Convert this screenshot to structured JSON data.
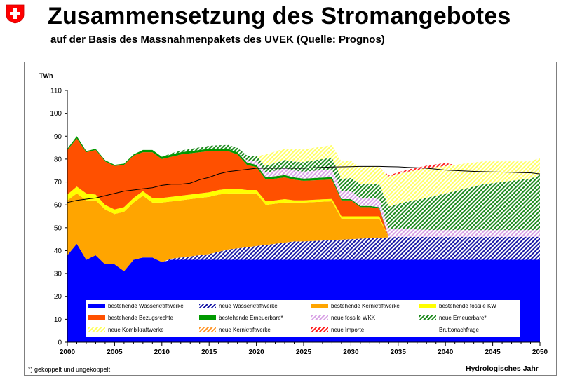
{
  "header": {
    "title": "Zusammensetzung des Stromangebotes",
    "subtitle": "auf der Basis des Massnahmenpakets des UVEK (Quelle: Prognos)"
  },
  "footnote": "*) gekoppelt und ungekoppelt",
  "colors": {
    "wasser": "#0000ff",
    "neue_wasser": "#1a1aa6",
    "kern": "#ffa500",
    "fossil": "#ffff00",
    "bezug": "#ff5000",
    "erneuerbar": "#009900",
    "neue_fossil": "#d9a3e6",
    "neue_erneuerbar": "#1d8a1d",
    "kombi": "#ffff66",
    "neue_kern": "#ff9a33",
    "neue_importe": "#ff2020",
    "nachfrage": "#000000",
    "flag": "#ff0000"
  },
  "chart_data": {
    "type": "area",
    "title": "",
    "ylabel": "TWh",
    "xlabel": "Hydrologisches Jahr",
    "ylim": [
      0,
      110
    ],
    "yticks": [
      0,
      10,
      20,
      30,
      40,
      50,
      60,
      70,
      80,
      90,
      100,
      110
    ],
    "xlim": [
      2000,
      2050
    ],
    "xticks": [
      2000,
      2005,
      2010,
      2015,
      2020,
      2025,
      2030,
      2035,
      2040,
      2045,
      2050
    ],
    "x": [
      2000,
      2001,
      2002,
      2003,
      2004,
      2005,
      2006,
      2007,
      2008,
      2009,
      2010,
      2011,
      2012,
      2013,
      2014,
      2015,
      2016,
      2017,
      2018,
      2019,
      2020,
      2021,
      2022,
      2023,
      2024,
      2025,
      2026,
      2027,
      2028,
      2029,
      2030,
      2031,
      2032,
      2033,
      2034,
      2035,
      2036,
      2037,
      2038,
      2039,
      2040,
      2041,
      2042,
      2043,
      2044,
      2045,
      2046,
      2047,
      2048,
      2049,
      2050
    ],
    "series": [
      {
        "name": "bestehende Wasserkraftwerke",
        "pattern": "solid",
        "color": "wasser",
        "values": [
          38,
          43,
          36,
          38,
          34,
          34,
          31,
          36,
          37,
          37,
          35,
          36,
          36,
          36,
          36,
          36,
          36,
          36,
          36,
          36,
          36,
          36,
          36,
          36,
          36,
          36,
          36,
          36,
          36,
          36,
          36,
          36,
          36,
          36,
          36,
          36,
          36,
          36,
          36,
          36,
          36,
          36,
          36,
          36,
          36,
          36,
          36,
          36,
          36,
          36,
          36
        ]
      },
      {
        "name": "neue Wasserkraftwerke",
        "pattern": "hatch",
        "color": "neue_wasser",
        "values": [
          0,
          0,
          0,
          0,
          0,
          0,
          0,
          0,
          0,
          0,
          0,
          0.5,
          1,
          1.5,
          2,
          2.5,
          3.5,
          4.5,
          5,
          5.5,
          6,
          6.5,
          7,
          7.5,
          8,
          8,
          8.2,
          8.4,
          8.6,
          8.8,
          9,
          9.2,
          9.4,
          9.6,
          9.8,
          10,
          10,
          10,
          10,
          10,
          10,
          10,
          10,
          10,
          10,
          10,
          10,
          10,
          10,
          10,
          10
        ]
      },
      {
        "name": "bestehende Kernkraftwerke",
        "pattern": "solid",
        "color": "kern",
        "values": [
          24,
          22,
          26,
          24,
          24,
          22,
          26,
          25,
          27,
          24,
          26,
          25,
          25,
          25,
          25,
          25,
          25,
          24.5,
          24,
          23.5,
          23,
          17.5,
          17.5,
          17.5,
          17,
          17,
          17,
          17,
          17,
          9.2,
          9,
          8.8,
          8.6,
          8.4,
          0,
          0,
          0,
          0,
          0,
          0,
          0,
          0,
          0,
          0,
          0,
          0,
          0,
          0,
          0,
          0,
          0
        ]
      },
      {
        "name": "bestehende fossile KW",
        "pattern": "solid",
        "color": "fossil",
        "values": [
          2.5,
          3,
          3,
          2.5,
          2,
          2,
          2,
          2,
          2,
          2,
          2,
          2,
          2,
          2,
          2,
          2,
          2,
          2,
          2,
          1.5,
          1.5,
          1.5,
          1.5,
          1.5,
          1,
          1,
          1,
          1,
          1,
          1,
          1,
          1,
          1,
          1,
          0,
          0,
          0,
          0,
          0,
          0,
          0,
          0,
          0,
          0,
          0,
          0,
          0,
          0,
          0,
          0,
          0
        ]
      },
      {
        "name": "bestehende Bezugsrechte",
        "pattern": "solid",
        "color": "bezug",
        "values": [
          19.5,
          21,
          18,
          19.5,
          19,
          19,
          18.5,
          18.5,
          17,
          20,
          17,
          17.5,
          18,
          18,
          18,
          18,
          17,
          16.5,
          15,
          11,
          10,
          9.5,
          9.5,
          9.5,
          9,
          8.5,
          8.5,
          8.5,
          8.5,
          7,
          7,
          4,
          4,
          3.5,
          0,
          0,
          0,
          0,
          0,
          0,
          0,
          0,
          0,
          0,
          0,
          0,
          0,
          0,
          0,
          0,
          0
        ]
      },
      {
        "name": "bestehende Erneuerbare*",
        "pattern": "solid",
        "color": "erneuerbar",
        "values": [
          0.5,
          1,
          0.5,
          0.5,
          0.5,
          0.5,
          0.5,
          0.5,
          1,
          1,
          1,
          1,
          1,
          1,
          1,
          1,
          1,
          1,
          1,
          1,
          1,
          1,
          1,
          1,
          1,
          1,
          1,
          1,
          1,
          0.5,
          0.5,
          0.5,
          0.5,
          0.5,
          0,
          0,
          0,
          0,
          0,
          0,
          0,
          0,
          0,
          0,
          0,
          0,
          0,
          0,
          0,
          0,
          0
        ]
      },
      {
        "name": "neue fossile WKK",
        "pattern": "hatch",
        "color": "neue_fossil",
        "values": [
          0,
          0,
          0,
          0,
          0,
          0,
          0,
          0,
          0,
          0,
          0,
          0,
          0,
          0,
          0,
          0,
          0,
          0,
          0,
          1,
          1.5,
          2,
          2.5,
          3,
          3,
          3,
          3.2,
          3.3,
          3.4,
          3.5,
          3.5,
          3.5,
          3.5,
          3.5,
          3.5,
          3.5,
          3.5,
          3.2,
          3.1,
          3,
          3,
          3,
          3,
          3,
          3,
          3,
          3,
          3,
          3,
          3,
          3
        ]
      },
      {
        "name": "neue Erneuerbare*",
        "pattern": "hatch",
        "color": "neue_erneuerbar",
        "values": [
          0,
          0,
          0,
          0,
          0,
          0,
          0,
          0,
          0,
          0,
          0,
          0.5,
          0.7,
          0.9,
          1.1,
          1.3,
          1.5,
          1.7,
          1.9,
          2.1,
          2.3,
          3,
          3.3,
          3.6,
          3.9,
          4.2,
          4.5,
          4.8,
          5.1,
          5.4,
          5.7,
          6,
          6.3,
          6.6,
          10,
          11,
          12,
          13,
          14,
          15,
          16,
          17,
          18,
          19,
          20,
          20.5,
          21,
          21.5,
          22,
          22.5,
          24
        ]
      },
      {
        "name": "neue Kombikraftwerke",
        "pattern": "hatch",
        "color": "kombi",
        "values": [
          0,
          0,
          0,
          0,
          0,
          0,
          0,
          0,
          0,
          0,
          0,
          0,
          0,
          0,
          0,
          0,
          0,
          0,
          0,
          0,
          0,
          5,
          5,
          5,
          5.5,
          5.5,
          5.5,
          5.5,
          5.5,
          7.5,
          7.5,
          7.5,
          7.5,
          7.5,
          13,
          13,
          13,
          13,
          13,
          12.5,
          12,
          11.5,
          11,
          10.5,
          10,
          9.5,
          9,
          8.5,
          8,
          7.5,
          7.5
        ]
      },
      {
        "name": "neue Kernkraftwerke",
        "pattern": "hatch",
        "color": "neue_kern",
        "values": [
          0,
          0,
          0,
          0,
          0,
          0,
          0,
          0,
          0,
          0,
          0,
          0,
          0,
          0,
          0,
          0,
          0,
          0,
          0,
          0,
          0,
          0,
          0,
          0,
          0,
          0,
          0,
          0,
          0,
          0,
          0,
          0,
          0,
          0,
          0,
          0,
          0,
          0,
          0,
          0,
          0,
          0,
          0,
          0,
          0,
          0,
          0,
          0,
          0,
          0,
          0
        ]
      },
      {
        "name": "neue Importe",
        "pattern": "hatch",
        "color": "neue_importe",
        "values": [
          0,
          0,
          0,
          0,
          0,
          0,
          0,
          0,
          0,
          0,
          0,
          0,
          0,
          0,
          0,
          0,
          0,
          0,
          0,
          0,
          0,
          0,
          0,
          0,
          0,
          0,
          0,
          0,
          0,
          0,
          0,
          0,
          0,
          0,
          0.5,
          0.7,
          0.9,
          1,
          1,
          1.2,
          1.3,
          0,
          0,
          0,
          0,
          0,
          0,
          0,
          0,
          0,
          0
        ]
      }
    ],
    "line": {
      "name": "Bruttonachfrage",
      "color": "nachfrage",
      "values": [
        61,
        62,
        62.5,
        63,
        64,
        65,
        66,
        66.5,
        67,
        67.5,
        68.5,
        69,
        69,
        69.5,
        71,
        72,
        73.5,
        74.5,
        75,
        75.5,
        76,
        76,
        76,
        76,
        76,
        76,
        76.2,
        76.4,
        76.5,
        76.6,
        76.7,
        76.8,
        76.8,
        76.8,
        76.7,
        76.6,
        76.4,
        76.2,
        76,
        75.6,
        75.2,
        75,
        74.8,
        74.6,
        74.5,
        74.4,
        74.3,
        74.2,
        74.1,
        74,
        73.5
      ]
    },
    "legend_position": "bottom, inside plot"
  },
  "legend": {
    "rows": [
      [
        "bestehende Wasserkraftwerke",
        "neue Wasserkraftwerke",
        "bestehende Kernkraftwerke",
        "bestehende fossile KW"
      ],
      [
        "bestehende Bezugsrechte",
        "bestehende Erneuerbare*",
        "neue fossile WKK",
        "neue Erneuerbare*"
      ],
      [
        "neue Kombikraftwerke",
        "neue Kernkraftwerke",
        "neue Importe",
        "Bruttonachfrage"
      ]
    ]
  }
}
